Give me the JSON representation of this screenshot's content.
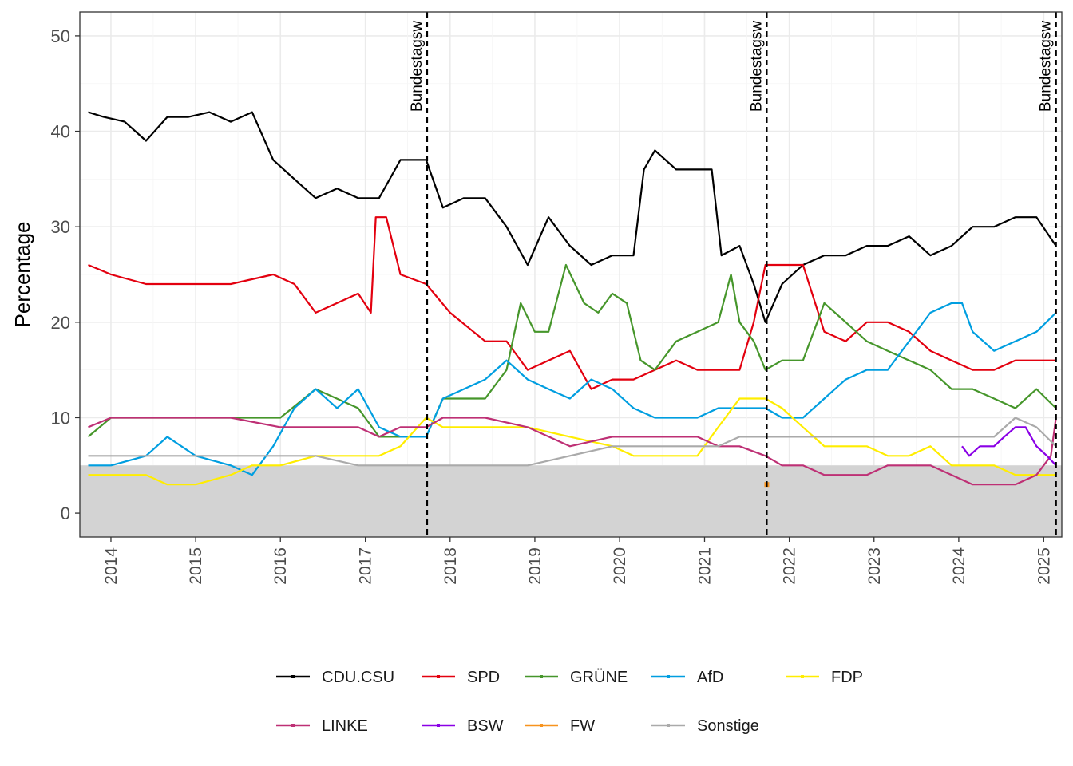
{
  "chart_data": {
    "type": "line",
    "title": "",
    "xlabel": "",
    "ylabel": "Percentage",
    "xlim": [
      "2013-08-20",
      "2025-03-20"
    ],
    "ylim": [
      -2.5,
      52.5
    ],
    "x_ticks": [
      "2014",
      "2015",
      "2016",
      "2017",
      "2018",
      "2019",
      "2020",
      "2021",
      "2022",
      "2023",
      "2024",
      "2025"
    ],
    "y_ticks": [
      0,
      10,
      20,
      30,
      40,
      50
    ],
    "grid": true,
    "threshold_band": {
      "from": -2.5,
      "to": 5,
      "color": "#d3d3d3"
    },
    "events": [
      {
        "date": "2017-09-24",
        "label": "Bundestagsw"
      },
      {
        "date": "2021-09-26",
        "label": "Bundestagsw"
      },
      {
        "date": "2025-02-23",
        "label": "Bundestagsw"
      }
    ],
    "legend_position": "bottom",
    "series": [
      {
        "name": "CDU.CSU",
        "color": "#000000",
        "x": [
          "2013-09-25",
          "2013-12-01",
          "2014-03-01",
          "2014-06-01",
          "2014-09-01",
          "2014-12-01",
          "2015-03-01",
          "2015-06-01",
          "2015-09-01",
          "2015-12-01",
          "2016-03-01",
          "2016-06-01",
          "2016-09-01",
          "2016-12-01",
          "2017-03-01",
          "2017-06-01",
          "2017-09-20",
          "2017-12-01",
          "2018-03-01",
          "2018-06-01",
          "2018-09-01",
          "2018-12-01",
          "2019-03-01",
          "2019-06-01",
          "2019-09-01",
          "2019-12-01",
          "2020-03-01",
          "2020-04-15",
          "2020-06-01",
          "2020-09-01",
          "2020-12-01",
          "2021-02-01",
          "2021-03-15",
          "2021-06-01",
          "2021-08-01",
          "2021-09-20",
          "2021-12-01",
          "2022-03-01",
          "2022-06-01",
          "2022-09-01",
          "2022-12-01",
          "2023-03-01",
          "2023-06-01",
          "2023-09-01",
          "2023-12-01",
          "2024-03-01",
          "2024-06-01",
          "2024-09-01",
          "2024-12-01",
          "2025-02-23"
        ],
        "y": [
          42,
          41.5,
          41,
          39,
          41.5,
          41.5,
          42,
          41,
          42,
          37,
          35,
          33,
          34,
          33,
          33,
          37,
          37,
          32,
          33,
          33,
          30,
          26,
          31,
          28,
          26,
          27,
          27,
          36,
          38,
          36,
          36,
          36,
          27,
          28,
          24,
          20,
          24,
          26,
          27,
          27,
          28,
          28,
          29,
          27,
          28,
          30,
          30,
          31,
          31,
          28
        ]
      },
      {
        "name": "SPD",
        "color": "#e3000f",
        "x": [
          "2013-09-25",
          "2014-01-01",
          "2014-06-01",
          "2015-01-01",
          "2015-06-01",
          "2015-12-01",
          "2016-03-01",
          "2016-06-01",
          "2016-12-01",
          "2017-01-25",
          "2017-02-15",
          "2017-04-01",
          "2017-06-01",
          "2017-09-20",
          "2018-01-01",
          "2018-06-01",
          "2018-09-01",
          "2018-12-01",
          "2019-03-01",
          "2019-06-01",
          "2019-09-01",
          "2019-12-01",
          "2020-03-01",
          "2020-06-01",
          "2020-09-01",
          "2020-12-01",
          "2021-03-01",
          "2021-06-01",
          "2021-08-01",
          "2021-09-20",
          "2021-12-01",
          "2022-03-01",
          "2022-06-01",
          "2022-09-01",
          "2022-12-01",
          "2023-03-01",
          "2023-06-01",
          "2023-09-01",
          "2023-12-01",
          "2024-03-01",
          "2024-06-01",
          "2024-09-01",
          "2024-12-01",
          "2025-02-23"
        ],
        "y": [
          26,
          25,
          24,
          24,
          24,
          25,
          24,
          21,
          23,
          21,
          31,
          31,
          25,
          24,
          21,
          18,
          18,
          15,
          16,
          17,
          13,
          14,
          14,
          15,
          16,
          15,
          15,
          15,
          20,
          26,
          26,
          26,
          19,
          18,
          20,
          20,
          19,
          17,
          16,
          15,
          15,
          16,
          16,
          16
        ]
      },
      {
        "name": "GRÜNE",
        "color": "#46962b",
        "x": [
          "2013-09-25",
          "2014-01-01",
          "2014-06-01",
          "2015-01-01",
          "2015-06-01",
          "2016-01-01",
          "2016-06-01",
          "2016-12-01",
          "2017-03-01",
          "2017-06-01",
          "2017-09-20",
          "2017-12-01",
          "2018-03-01",
          "2018-06-01",
          "2018-09-01",
          "2018-11-01",
          "2019-01-01",
          "2019-03-01",
          "2019-05-15",
          "2019-08-01",
          "2019-10-01",
          "2019-12-01",
          "2020-02-01",
          "2020-04-01",
          "2020-06-01",
          "2020-09-01",
          "2020-12-01",
          "2021-03-01",
          "2021-04-25",
          "2021-06-01",
          "2021-08-01",
          "2021-09-20",
          "2021-12-01",
          "2022-03-01",
          "2022-06-01",
          "2022-09-01",
          "2022-12-01",
          "2023-03-01",
          "2023-06-01",
          "2023-09-01",
          "2023-12-01",
          "2024-03-01",
          "2024-06-01",
          "2024-09-01",
          "2024-12-01",
          "2025-02-23"
        ],
        "y": [
          8,
          10,
          10,
          10,
          10,
          10,
          13,
          11,
          8,
          8,
          8,
          12,
          12,
          12,
          15,
          22,
          19,
          19,
          26,
          22,
          21,
          23,
          22,
          16,
          15,
          18,
          19,
          20,
          25,
          20,
          18,
          15,
          16,
          16,
          22,
          20,
          18,
          17,
          16,
          15,
          13,
          13,
          12,
          11,
          13,
          11
        ]
      },
      {
        "name": "AfD",
        "color": "#009ee0",
        "x": [
          "2013-09-25",
          "2014-01-01",
          "2014-06-01",
          "2014-09-01",
          "2015-01-01",
          "2015-06-01",
          "2015-09-01",
          "2015-12-01",
          "2016-03-01",
          "2016-06-01",
          "2016-09-01",
          "2016-12-01",
          "2017-03-01",
          "2017-06-01",
          "2017-09-20",
          "2017-12-01",
          "2018-03-01",
          "2018-06-01",
          "2018-09-01",
          "2018-12-01",
          "2019-03-01",
          "2019-06-01",
          "2019-09-01",
          "2019-12-01",
          "2020-03-01",
          "2020-06-01",
          "2020-09-01",
          "2020-12-01",
          "2021-03-01",
          "2021-06-01",
          "2021-09-20",
          "2021-12-01",
          "2022-03-01",
          "2022-06-01",
          "2022-09-01",
          "2022-12-01",
          "2023-03-01",
          "2023-06-01",
          "2023-09-01",
          "2023-12-01",
          "2024-01-15",
          "2024-03-01",
          "2024-06-01",
          "2024-09-01",
          "2024-12-01",
          "2025-02-23"
        ],
        "y": [
          5,
          5,
          6,
          8,
          6,
          5,
          4,
          7,
          11,
          13,
          11,
          13,
          9,
          8,
          8,
          12,
          13,
          14,
          16,
          14,
          13,
          12,
          14,
          13,
          11,
          10,
          10,
          10,
          11,
          11,
          11,
          10,
          10,
          12,
          14,
          15,
          15,
          18,
          21,
          22,
          22,
          19,
          17,
          18,
          19,
          21
        ]
      },
      {
        "name": "FDP",
        "color": "#ffed00",
        "x": [
          "2013-09-25",
          "2014-01-01",
          "2014-06-01",
          "2014-09-01",
          "2015-01-01",
          "2015-06-01",
          "2015-09-01",
          "2016-01-01",
          "2016-06-01",
          "2016-12-01",
          "2017-03-01",
          "2017-06-01",
          "2017-09-20",
          "2017-12-01",
          "2018-06-01",
          "2018-12-01",
          "2019-06-01",
          "2019-12-01",
          "2020-03-01",
          "2020-06-01",
          "2020-09-01",
          "2020-12-01",
          "2021-03-01",
          "2021-06-01",
          "2021-09-20",
          "2021-12-01",
          "2022-03-01",
          "2022-06-01",
          "2022-09-01",
          "2022-12-01",
          "2023-03-01",
          "2023-06-01",
          "2023-09-01",
          "2023-12-01",
          "2024-03-01",
          "2024-06-01",
          "2024-09-01",
          "2024-12-01",
          "2025-02-23"
        ],
        "y": [
          4,
          4,
          4,
          3,
          3,
          4,
          5,
          5,
          6,
          6,
          6,
          7,
          10,
          9,
          9,
          9,
          8,
          7,
          6,
          6,
          6,
          6,
          9,
          12,
          12,
          11,
          9,
          7,
          7,
          7,
          6,
          6,
          7,
          5,
          5,
          5,
          4,
          4,
          4
        ]
      },
      {
        "name": "LINKE",
        "color": "#be3075",
        "x": [
          "2013-09-25",
          "2014-01-01",
          "2014-06-01",
          "2015-01-01",
          "2015-06-01",
          "2016-01-01",
          "2016-06-01",
          "2016-12-01",
          "2017-03-01",
          "2017-06-01",
          "2017-09-20",
          "2017-12-01",
          "2018-06-01",
          "2018-12-01",
          "2019-06-01",
          "2019-12-01",
          "2020-06-01",
          "2020-12-01",
          "2021-03-01",
          "2021-06-01",
          "2021-09-20",
          "2021-12-01",
          "2022-03-01",
          "2022-06-01",
          "2022-09-01",
          "2022-12-01",
          "2023-03-01",
          "2023-06-01",
          "2023-09-01",
          "2023-12-01",
          "2024-03-01",
          "2024-06-01",
          "2024-09-01",
          "2024-12-01",
          "2025-02-01",
          "2025-02-23"
        ],
        "y": [
          9,
          10,
          10,
          10,
          10,
          9,
          9,
          9,
          8,
          9,
          9,
          10,
          10,
          9,
          7,
          8,
          8,
          8,
          7,
          7,
          6,
          5,
          5,
          4,
          4,
          4,
          5,
          5,
          5,
          4,
          3,
          3,
          3,
          4,
          6,
          10
        ]
      },
      {
        "name": "BSW",
        "color": "#8a00e6",
        "x": [
          "2024-01-15",
          "2024-02-15",
          "2024-04-01",
          "2024-06-01",
          "2024-07-15",
          "2024-09-01",
          "2024-10-15",
          "2024-12-01",
          "2025-01-15",
          "2025-02-23"
        ],
        "y": [
          7,
          6,
          7,
          7,
          8,
          9,
          9,
          7,
          6,
          5
        ]
      },
      {
        "name": "FW",
        "color": "#f7931e",
        "x": [
          "2021-09-26"
        ],
        "y": [
          3
        ]
      },
      {
        "name": "Sonstige",
        "color": "#aaaaaa",
        "x": [
          "2013-09-25",
          "2014-06-01",
          "2015-01-01",
          "2015-06-01",
          "2016-01-01",
          "2016-06-01",
          "2016-12-01",
          "2017-03-01",
          "2017-06-01",
          "2017-09-20",
          "2017-12-01",
          "2018-06-01",
          "2018-12-01",
          "2019-06-01",
          "2019-12-01",
          "2020-06-01",
          "2020-12-01",
          "2021-03-01",
          "2021-06-01",
          "2021-09-20",
          "2021-12-01",
          "2022-03-01",
          "2022-06-01",
          "2022-09-01",
          "2022-12-01",
          "2023-03-01",
          "2023-06-01",
          "2023-09-01",
          "2023-12-01",
          "2024-03-01",
          "2024-06-01",
          "2024-09-01",
          "2024-12-01",
          "2025-02-23"
        ],
        "y": [
          6,
          6,
          6,
          6,
          6,
          6,
          5,
          5,
          5,
          5,
          5,
          5,
          5,
          6,
          7,
          7,
          7,
          7,
          8,
          8,
          8,
          8,
          8,
          8,
          8,
          8,
          8,
          8,
          8,
          8,
          8,
          10,
          9,
          7
        ]
      }
    ]
  }
}
